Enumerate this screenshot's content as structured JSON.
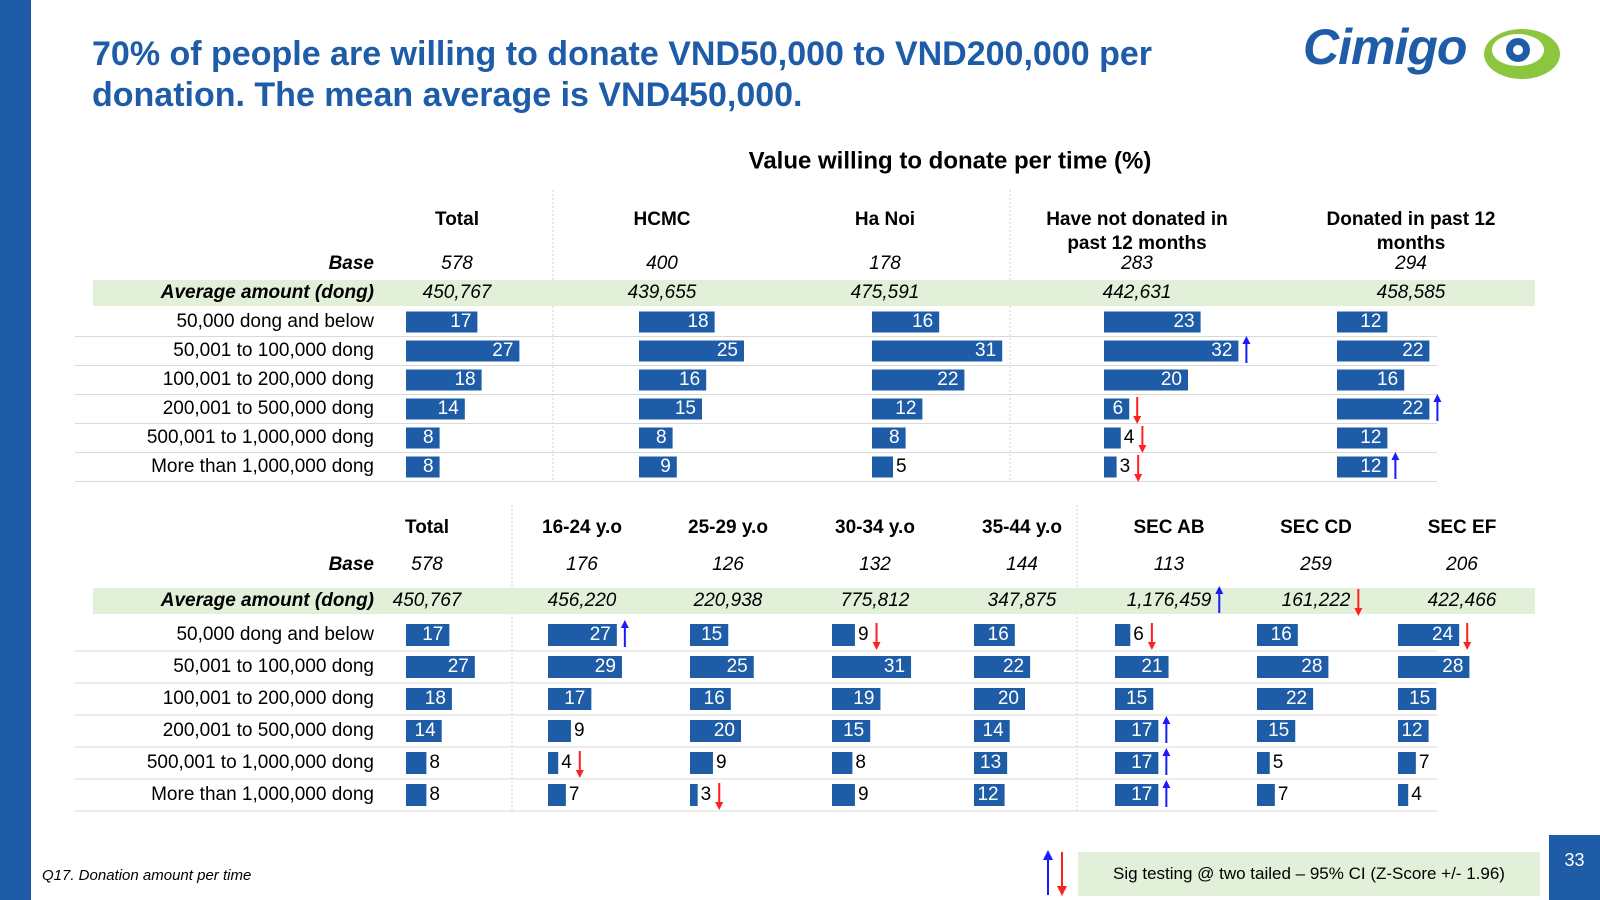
{
  "header": {
    "title": "70% of people are willing to donate VND50,000 to VND200,000 per donation.  The mean average is VND450,000.",
    "logo": "Cimigo"
  },
  "chart_title": "Value willing to donate per time (%)",
  "bar_color": "#1f5ca8",
  "tables": [
    {
      "base_label": "Base",
      "average_label": "Average amount (dong)",
      "rows": [
        "50,000 dong and below",
        "50,001 to 100,000 dong",
        "100,001 to 200,000 dong",
        "200,001 to 500,000 dong",
        "500,001 to 1,000,000 dong",
        "More than 1,000,000 dong"
      ],
      "columns": [
        {
          "name": "Total",
          "base": 578,
          "average": "450,767",
          "average_sig": null,
          "values": [
            17,
            27,
            18,
            14,
            8,
            8
          ],
          "sig": [
            null,
            null,
            null,
            null,
            null,
            null
          ]
        },
        {
          "name": "HCMC",
          "base": 400,
          "average": "439,655",
          "average_sig": null,
          "values": [
            18,
            25,
            16,
            15,
            8,
            9
          ],
          "sig": [
            null,
            null,
            null,
            null,
            null,
            null
          ]
        },
        {
          "name": "Ha Noi",
          "base": 178,
          "average": "475,591",
          "average_sig": null,
          "values": [
            16,
            31,
            22,
            12,
            8,
            5
          ],
          "sig": [
            null,
            null,
            null,
            null,
            null,
            null
          ]
        },
        {
          "name": "Have not donated in past 12 months",
          "base": 283,
          "average": "442,631",
          "average_sig": null,
          "values": [
            23,
            32,
            20,
            6,
            4,
            3
          ],
          "sig": [
            null,
            "up",
            null,
            "down",
            "down",
            "down"
          ]
        },
        {
          "name": "Donated in past 12 months",
          "base": 294,
          "average": "458,585",
          "average_sig": null,
          "values": [
            12,
            22,
            16,
            22,
            12,
            12
          ],
          "sig": [
            null,
            null,
            null,
            "up",
            null,
            "up"
          ]
        }
      ]
    },
    {
      "base_label": "Base",
      "average_label": "Average amount (dong)",
      "rows": [
        "50,000 dong and below",
        "50,001 to 100,000 dong",
        "100,001 to 200,000 dong",
        "200,001 to 500,000 dong",
        "500,001 to 1,000,000 dong",
        "More than 1,000,000 dong"
      ],
      "columns": [
        {
          "name": "Total",
          "base": 578,
          "average": "450,767",
          "average_sig": null,
          "values": [
            17,
            27,
            18,
            14,
            8,
            8
          ],
          "sig": [
            null,
            null,
            null,
            null,
            null,
            null
          ]
        },
        {
          "name": "16-24 y.o",
          "base": 176,
          "average": "456,220",
          "average_sig": null,
          "values": [
            27,
            29,
            17,
            9,
            4,
            7
          ],
          "sig": [
            "up",
            null,
            null,
            null,
            "down",
            null
          ]
        },
        {
          "name": "25-29 y.o",
          "base": 126,
          "average": "220,938",
          "average_sig": null,
          "values": [
            15,
            25,
            16,
            20,
            9,
            3
          ],
          "sig": [
            null,
            null,
            null,
            null,
            null,
            "down"
          ]
        },
        {
          "name": "30-34 y.o",
          "base": 132,
          "average": "775,812",
          "average_sig": null,
          "values": [
            9,
            31,
            19,
            15,
            8,
            9
          ],
          "sig": [
            "down",
            null,
            null,
            null,
            null,
            null
          ]
        },
        {
          "name": "35-44 y.o",
          "base": 144,
          "average": "347,875",
          "average_sig": null,
          "values": [
            16,
            22,
            20,
            14,
            13,
            12
          ],
          "sig": [
            null,
            null,
            null,
            null,
            null,
            null
          ]
        },
        {
          "name": "SEC AB",
          "base": 113,
          "average": "1,176,459",
          "average_sig": "up",
          "values": [
            6,
            21,
            15,
            17,
            17,
            17
          ],
          "sig": [
            "down",
            null,
            null,
            "up",
            "up",
            "up"
          ]
        },
        {
          "name": "SEC CD",
          "base": 259,
          "average": "161,222",
          "average_sig": "down",
          "values": [
            16,
            28,
            22,
            15,
            5,
            7
          ],
          "sig": [
            null,
            null,
            null,
            null,
            null,
            null
          ]
        },
        {
          "name": "SEC EF",
          "base": 206,
          "average": "422,466",
          "average_sig": null,
          "values": [
            24,
            28,
            15,
            12,
            7,
            4
          ],
          "sig": [
            "down",
            null,
            null,
            null,
            null,
            null
          ]
        }
      ]
    }
  ],
  "footer": {
    "note": "Q17. Donation amount per time",
    "legend": "Sig testing @ two tailed – 95% CI (Z-Score +/- 1.96)",
    "page": 33
  }
}
